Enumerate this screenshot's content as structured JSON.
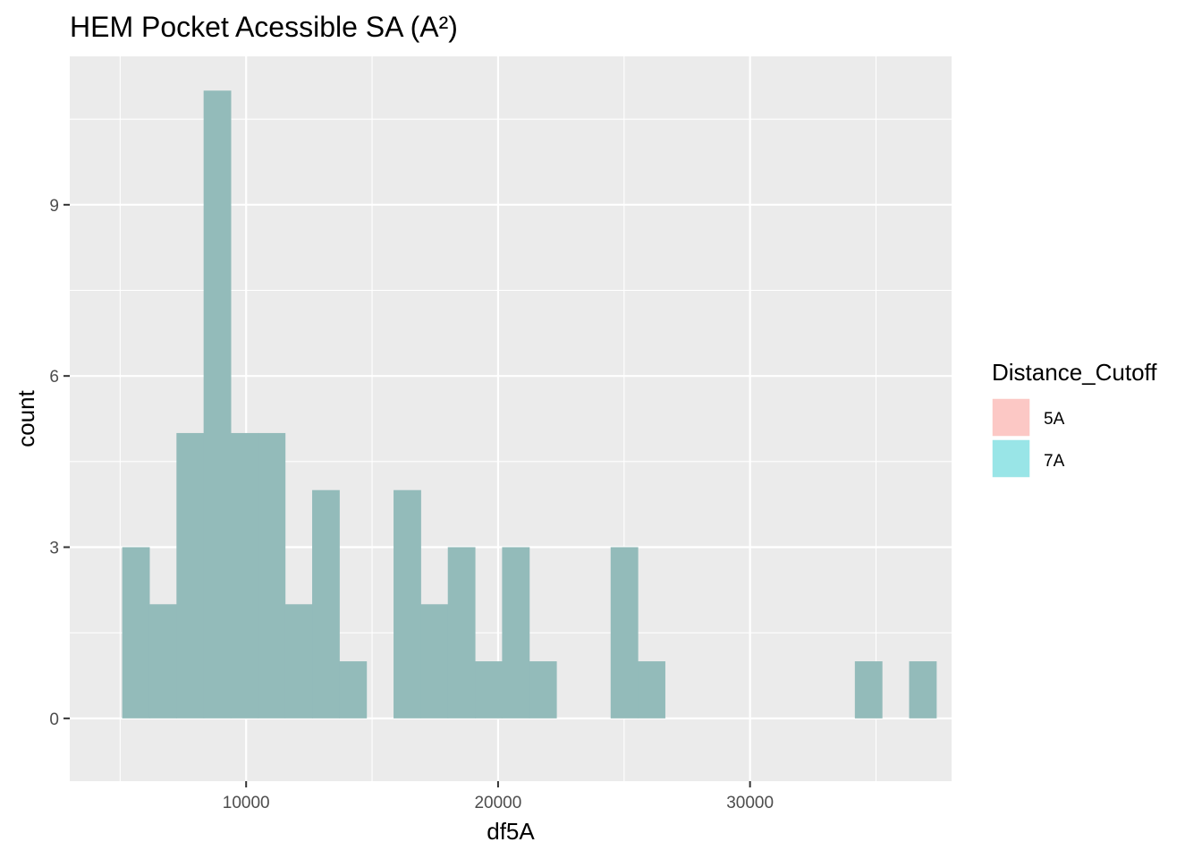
{
  "chart_data": {
    "type": "bar",
    "title": "HEM Pocket Acessible SA (A²)",
    "xlabel": "df5A",
    "ylabel": "count",
    "xlim": [
      3000,
      38000
    ],
    "ylim": [
      -1.1,
      11.6
    ],
    "x_ticks": [
      10000,
      20000,
      30000
    ],
    "x_tick_labels": [
      "10000",
      "20000",
      "30000"
    ],
    "x_minor_ticks": [
      5000,
      15000,
      25000,
      35000
    ],
    "y_ticks": [
      0,
      3,
      6,
      9
    ],
    "y_tick_labels": [
      "0",
      "3",
      "6",
      "9"
    ],
    "y_minor_ticks": [
      1.5,
      4.5,
      7.5,
      10.5
    ],
    "grid": true,
    "bin_width": 1077,
    "bins": [
      {
        "x": 5620,
        "count": 3
      },
      {
        "x": 6697,
        "count": 2
      },
      {
        "x": 7774,
        "count": 5
      },
      {
        "x": 8851,
        "count": 11
      },
      {
        "x": 9928,
        "count": 5
      },
      {
        "x": 11005,
        "count": 5
      },
      {
        "x": 12082,
        "count": 2
      },
      {
        "x": 13159,
        "count": 4
      },
      {
        "x": 14236,
        "count": 1
      },
      {
        "x": 15313,
        "count": 0
      },
      {
        "x": 16390,
        "count": 4
      },
      {
        "x": 17467,
        "count": 2
      },
      {
        "x": 18544,
        "count": 3
      },
      {
        "x": 19621,
        "count": 1
      },
      {
        "x": 20698,
        "count": 3
      },
      {
        "x": 21775,
        "count": 1
      },
      {
        "x": 22852,
        "count": 0
      },
      {
        "x": 23929,
        "count": 0
      },
      {
        "x": 25006,
        "count": 3
      },
      {
        "x": 26083,
        "count": 1
      },
      {
        "x": 27160,
        "count": 0
      },
      {
        "x": 28237,
        "count": 0
      },
      {
        "x": 29314,
        "count": 0
      },
      {
        "x": 30391,
        "count": 0
      },
      {
        "x": 31468,
        "count": 0
      },
      {
        "x": 32545,
        "count": 0
      },
      {
        "x": 33622,
        "count": 0
      },
      {
        "x": 34699,
        "count": 1
      },
      {
        "x": 35776,
        "count": 0
      },
      {
        "x": 36853,
        "count": 1
      }
    ],
    "legend": {
      "title": "Distance_Cutoff",
      "placement": "right",
      "items": [
        {
          "label": "5A",
          "color": "#f8766d"
        },
        {
          "label": "7A",
          "color": "#00bfc4"
        }
      ]
    },
    "colors": {
      "panel_background": "#ebebeb",
      "grid": "#ffffff",
      "bar_fill": "#93bbba",
      "tick_text": "#4d4d4d"
    }
  }
}
